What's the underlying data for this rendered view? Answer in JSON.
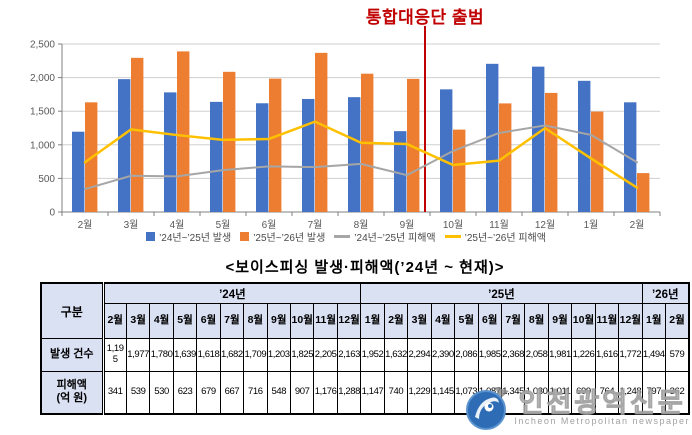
{
  "chart_data": [
    {
      "type": "bar",
      "title": "",
      "categories": [
        "2월",
        "3월",
        "4월",
        "5월",
        "6월",
        "7월",
        "8월",
        "9월",
        "10월",
        "11월",
        "12월",
        "1월",
        "2월"
      ],
      "series": [
        {
          "name": "’24년~’25년 발생",
          "kind": "bar",
          "color": "#4472C4",
          "values": [
            1195,
            1977,
            1780,
            1639,
            1618,
            1682,
            1709,
            1203,
            1825,
            2205,
            2163,
            1952,
            1632
          ]
        },
        {
          "name": "’25년~’26년 발생",
          "kind": "bar",
          "color": "#ED7D31",
          "values": [
            1632,
            2294,
            2390,
            2086,
            1985,
            2368,
            2058,
            1981,
            1226,
            1616,
            1772,
            1494,
            579
          ]
        },
        {
          "name": "’24년~’25년 피해액",
          "kind": "line",
          "color": "#A6A6A6",
          "values": [
            341,
            539,
            530,
            623,
            679,
            667,
            716,
            548,
            907,
            1176,
            1288,
            1147,
            740
          ]
        },
        {
          "name": "’25년~’26년 피해액",
          "kind": "line",
          "color": "#FFC000",
          "values": [
            740,
            1229,
            1145,
            1073,
            1087,
            1345,
            1030,
            1011,
            699,
            764,
            1248,
            797,
            362
          ]
        }
      ],
      "xlabel": "",
      "ylabel": "",
      "ylim": [
        0,
        2500
      ],
      "yticks": [
        "0",
        "500",
        "1,000",
        "1,500",
        "2,000",
        "2,500"
      ],
      "grid": true,
      "legend_position": "bottom",
      "annotation": {
        "label": "통합대응단 출범",
        "color": "#C00000",
        "line_between": [
          "9월",
          "10월"
        ]
      }
    },
    {
      "type": "table",
      "title": "<보이스피싱 발생·피해액(’24년 ~ 현재)>",
      "corner_label": "구분",
      "year_groups": [
        {
          "label": "’24년",
          "months": [
            "2월",
            "3월",
            "4월",
            "5월",
            "6월",
            "7월",
            "8월",
            "9월",
            "10월",
            "11월",
            "12월"
          ]
        },
        {
          "label": "’25년",
          "months": [
            "1월",
            "2월",
            "3월",
            "4월",
            "5월",
            "6월",
            "7월",
            "8월",
            "9월",
            "10월",
            "11월",
            "12월"
          ]
        },
        {
          "label": "’26년",
          "months": [
            "1월",
            "2월"
          ]
        }
      ],
      "rows": [
        {
          "label": "발생 건수",
          "values": [
            "1,195",
            "1,977",
            "1,780",
            "1,639",
            "1,618",
            "1,682",
            "1,709",
            "1,203",
            "1,825",
            "2,205",
            "2,163",
            "1,952",
            "1,632",
            "2,294",
            "2,390",
            "2,086",
            "1,985",
            "2,368",
            "2,058",
            "1,981",
            "1,226",
            "1,616",
            "1,772",
            "1,494",
            "579"
          ]
        },
        {
          "label": "피해액\n(억 원)",
          "values": [
            "341",
            "539",
            "530",
            "623",
            "679",
            "667",
            "716",
            "548",
            "907",
            "1,176",
            "1,288",
            "1,147",
            "740",
            "1,229",
            "1,145",
            "1,073",
            "1,087",
            "1,345",
            "1,030",
            "1,011",
            "699",
            "764",
            "1,248",
            "797",
            "362"
          ]
        }
      ]
    }
  ],
  "colors": {
    "bar_2024": "#4472C4",
    "bar_2025": "#ED7D31",
    "line_2024_damage": "#A6A6A6",
    "line_2025_damage": "#FFC000",
    "annotation_red": "#C00000",
    "table_header_bg": "#DAE1F3"
  },
  "watermark": {
    "korean": "인천광역신문",
    "english": "Incheon Metropolitan newspaper"
  }
}
